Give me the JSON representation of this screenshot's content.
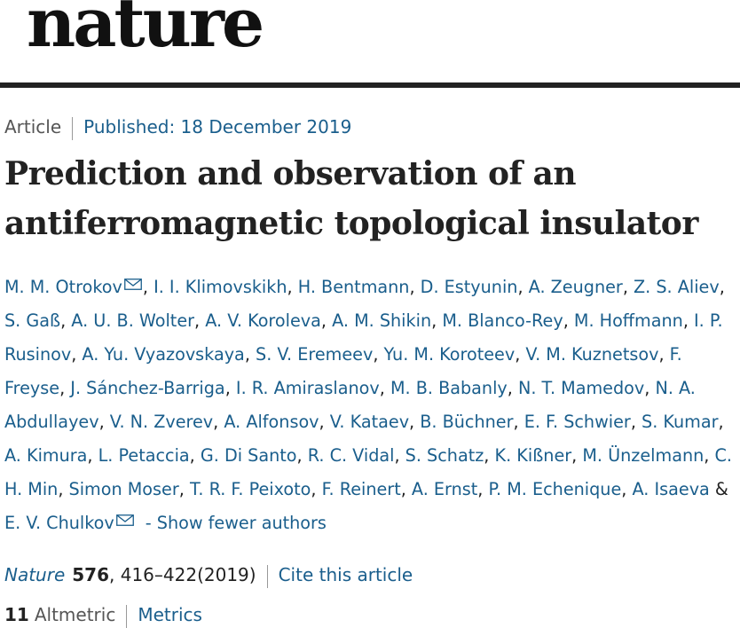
{
  "header": {
    "logo": "nature"
  },
  "article_meta": {
    "type": "Article",
    "published": "Published: 18 December 2019"
  },
  "title": "Prediction and observation of an antiferromagnetic topological insulator",
  "authors": [
    "M. M. Otrokov",
    "I. I. Klimovskikh",
    "H. Bentmann",
    "D. Estyunin",
    "A. Zeugner",
    "Z. S. Aliev",
    "S. Gaß",
    "A. U. B. Wolter",
    "A. V. Koroleva",
    "A. M. Shikin",
    "M. Blanco-Rey",
    "M. Hoffmann",
    "I. P. Rusinov",
    "A. Yu. Vyazovskaya",
    "S. V. Eremeev",
    "Yu. M. Koroteev",
    "V. M. Kuznetsov",
    "F. Freyse",
    "J. Sánchez-Barriga",
    "I. R. Amiraslanov",
    "M. B. Babanly",
    "N. T. Mamedov",
    "N. A. Abdullayev",
    "V. N. Zverev",
    "A. Alfonsov",
    "V. Kataev",
    "B. Büchner",
    "E. F. Schwier",
    "S. Kumar",
    "A. Kimura",
    "L. Petaccia",
    "G. Di Santo",
    "R. C. Vidal",
    "S. Schatz",
    "K. Kißner",
    "M. Ünzelmann",
    "C. H. Min",
    "Simon Moser",
    "T. R. F. Peixoto",
    "F. Reinert",
    "A. Ernst",
    "P. M. Echenique",
    "A. Isaeva",
    "E. V. Chulkov"
  ],
  "author_separator": ", ",
  "author_final_separator": " & ",
  "show_fewer_label": "- Show fewer authors",
  "citation": {
    "journal": "Nature",
    "volume": "576",
    "pages": ", 416–422(2019)",
    "cite_label": "Cite this article"
  },
  "metrics": {
    "altmetric_count": "11",
    "altmetric_label": "Altmetric",
    "metrics_label": "Metrics"
  },
  "colors": {
    "link": "#1a5e8c",
    "text": "#222222",
    "rule": "#222222"
  },
  "icons": {
    "corresponding_author": "envelope-icon"
  }
}
